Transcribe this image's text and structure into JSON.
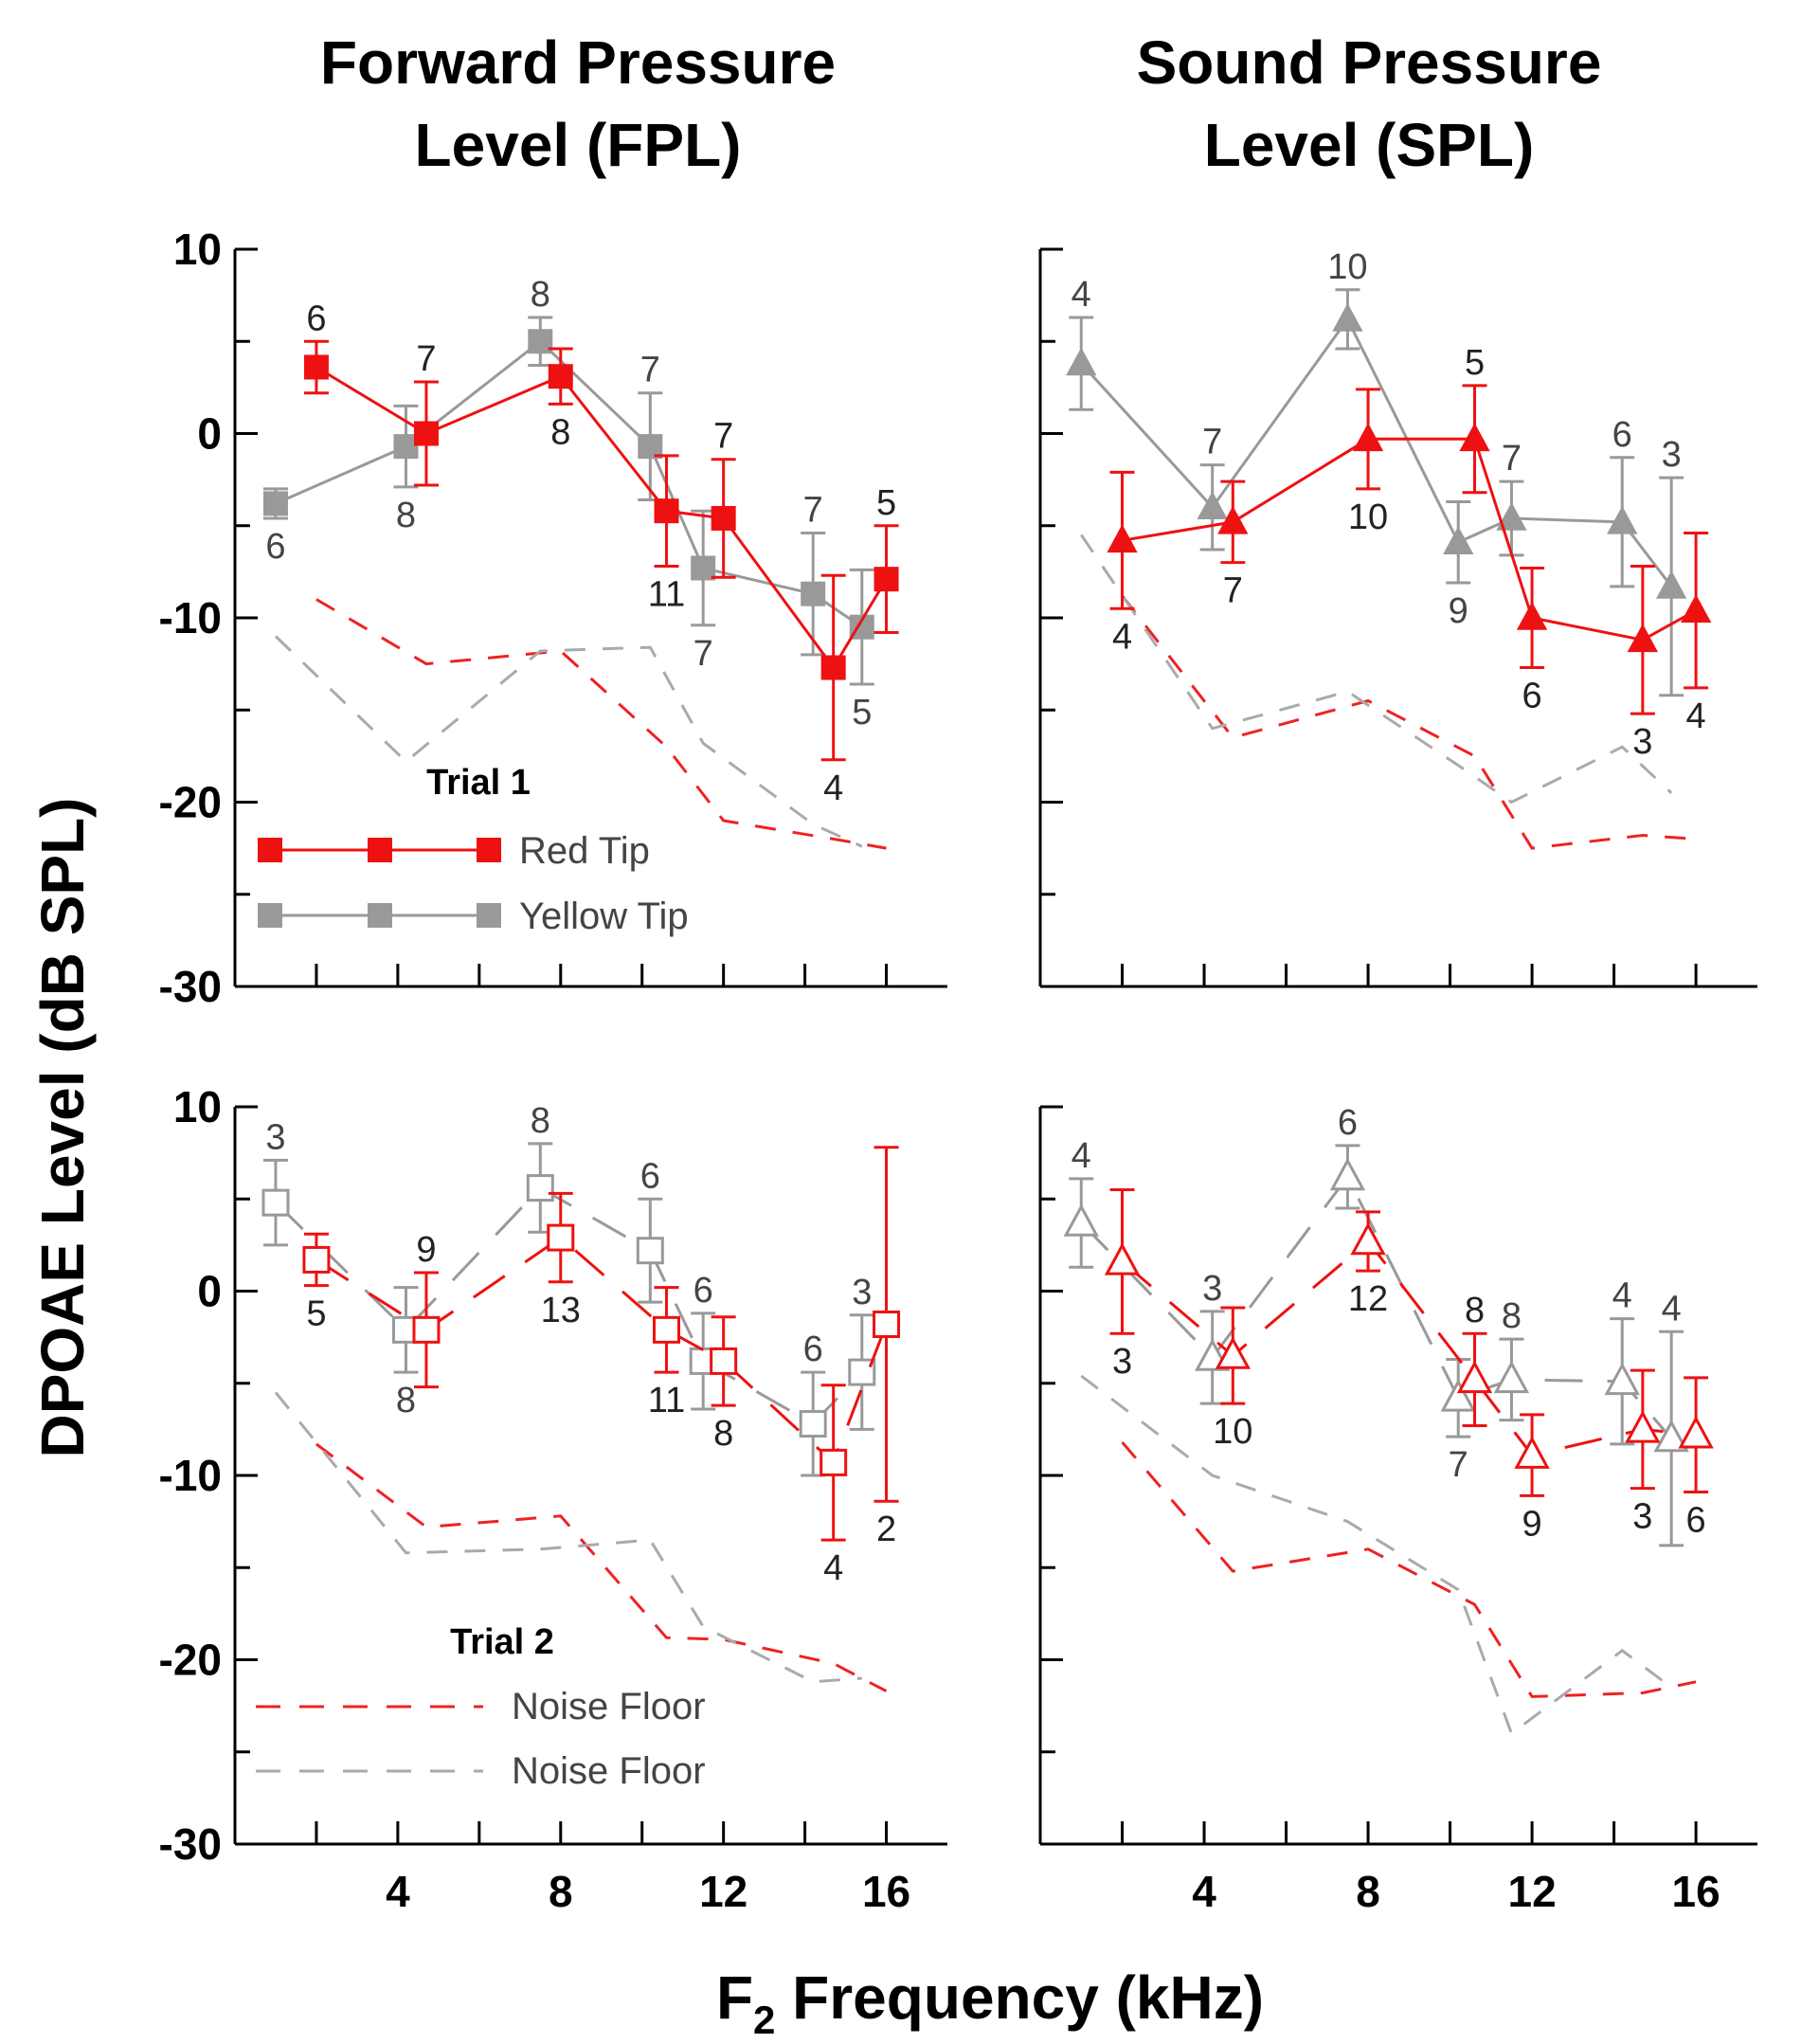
{
  "figure": {
    "col_titles": [
      [
        "Forward Pressure",
        "Level (FPL)"
      ],
      [
        "Sound Pressure",
        "Level (SPL)"
      ]
    ],
    "ylabel": "DPOAE Level (dB SPL)",
    "xlabel_prefix": "F",
    "xlabel_sub": "2",
    "xlabel_suffix": " Frequency (kHz)"
  },
  "colors": {
    "red": "#ee1111",
    "gray": "#999999",
    "red_noise": "#ee2222",
    "gray_noise": "#aaaaaa"
  },
  "legends": {
    "trial1": {
      "title": "Trial 1",
      "items": [
        {
          "label": "Red Tip",
          "series": "red"
        },
        {
          "label": "Yellow Tip",
          "series": "gray"
        }
      ]
    },
    "trial2": {
      "title": "Trial 2",
      "items": [
        {
          "label": "Noise Floor",
          "series": "red"
        },
        {
          "label": "Noise Floor",
          "series": "gray"
        }
      ]
    }
  },
  "chart_data": [
    {
      "id": "fpl_trial1",
      "type": "line",
      "marker": "square",
      "filled": true,
      "line_style": "solid",
      "xlim": [
        0,
        17.5
      ],
      "ylim": [
        -30,
        10
      ],
      "xticks": [
        4,
        8,
        12,
        16
      ],
      "yticks": [
        10,
        0,
        -10,
        -20,
        -30
      ],
      "series": [
        {
          "name": "Red Tip",
          "color": "red",
          "x": [
            2.0,
            4.7,
            8.0,
            10.6,
            12.0,
            14.7,
            16.0
          ],
          "y": [
            3.6,
            0.0,
            3.1,
            -4.2,
            -4.6,
            -12.7,
            -7.9
          ],
          "err": [
            1.4,
            2.8,
            1.5,
            3.0,
            3.2,
            5.0,
            2.9
          ],
          "n": [
            "6",
            "7",
            "8",
            "11",
            "7",
            "4",
            "5"
          ],
          "n_pos": [
            "above",
            "above",
            "below",
            "below",
            "above",
            "below",
            "above"
          ]
        },
        {
          "name": "Yellow Tip",
          "color": "gray",
          "x": [
            1.0,
            4.2,
            7.5,
            10.2,
            11.5,
            14.2,
            15.4
          ],
          "y": [
            -3.8,
            -0.7,
            5.0,
            -0.7,
            -7.3,
            -8.7,
            -10.5
          ],
          "err": [
            0.8,
            2.2,
            1.3,
            2.9,
            3.1,
            3.3,
            3.1
          ],
          "n": [
            "6",
            "8",
            "8",
            "7",
            "7",
            "7",
            "5"
          ],
          "n_pos": [
            "below",
            "below",
            "above",
            "above",
            "below",
            "above",
            "below"
          ]
        }
      ],
      "noise_floor": [
        {
          "color": "red",
          "x": [
            2.0,
            4.7,
            8.0,
            10.6,
            12.0,
            14.7,
            16.0
          ],
          "y": [
            -9.0,
            -12.5,
            -11.8,
            -17.0,
            -21.0,
            -22.0,
            -22.5
          ]
        },
        {
          "color": "gray",
          "x": [
            1.0,
            4.2,
            7.5,
            10.2,
            11.5,
            14.2,
            15.4
          ],
          "y": [
            -11.0,
            -17.8,
            -11.8,
            -11.6,
            -16.8,
            -21.2,
            -22.4
          ]
        }
      ]
    },
    {
      "id": "spl_trial1",
      "type": "line",
      "marker": "triangle",
      "filled": true,
      "line_style": "solid",
      "xlim": [
        0,
        17.5
      ],
      "ylim": [
        -30,
        10
      ],
      "xticks": [
        4,
        8,
        12,
        16
      ],
      "yticks": [
        10,
        0,
        -10,
        -20,
        -30
      ],
      "series": [
        {
          "name": "Red Tip",
          "color": "red",
          "x": [
            2.0,
            4.7,
            8.0,
            10.6,
            12.0,
            14.7,
            16.0
          ],
          "y": [
            -5.8,
            -4.8,
            -0.3,
            -0.3,
            -10.0,
            -11.2,
            -9.6
          ],
          "err": [
            3.7,
            2.2,
            2.7,
            2.9,
            2.7,
            4.0,
            4.2
          ],
          "n": [
            "4",
            "7",
            "10",
            "5",
            "6",
            "3",
            "4"
          ],
          "n_pos": [
            "below",
            "below",
            "below",
            "above",
            "below",
            "below",
            "below"
          ]
        },
        {
          "name": "Yellow Tip",
          "color": "gray",
          "x": [
            1.0,
            4.2,
            7.5,
            10.2,
            11.5,
            14.2,
            15.4
          ],
          "y": [
            3.8,
            -4.0,
            6.2,
            -5.9,
            -4.6,
            -4.8,
            -8.3
          ],
          "err": [
            2.5,
            2.3,
            1.6,
            2.2,
            2.0,
            3.5,
            5.9
          ],
          "n": [
            "4",
            "7",
            "10",
            "9",
            "7",
            "6",
            "3"
          ],
          "n_pos": [
            "above",
            "above",
            "above",
            "below",
            "above",
            "above",
            "above"
          ]
        }
      ],
      "noise_floor": [
        {
          "color": "red",
          "x": [
            2.0,
            4.7,
            8.0,
            10.6,
            12.0,
            14.7,
            16.0
          ],
          "y": [
            -8.8,
            -16.5,
            -14.5,
            -17.5,
            -22.5,
            -21.8,
            -22.0
          ]
        },
        {
          "color": "gray",
          "x": [
            1.0,
            4.2,
            7.5,
            10.2,
            11.5,
            14.2,
            15.4
          ],
          "y": [
            -5.5,
            -16.0,
            -14.0,
            -18.0,
            -20.0,
            -17.0,
            -19.5
          ]
        }
      ]
    },
    {
      "id": "fpl_trial2",
      "type": "line",
      "marker": "square",
      "filled": false,
      "line_style": "dashed",
      "xlim": [
        0,
        17.5
      ],
      "ylim": [
        -30,
        10
      ],
      "xticks": [
        4,
        8,
        12,
        16
      ],
      "yticks": [
        10,
        0,
        -10,
        -20,
        -30
      ],
      "series": [
        {
          "name": "Red Tip",
          "color": "red",
          "x": [
            2.0,
            4.7,
            8.0,
            10.6,
            12.0,
            14.7,
            16.0
          ],
          "y": [
            1.7,
            -2.1,
            2.9,
            -2.1,
            -3.8,
            -9.3,
            -1.8
          ],
          "err": [
            1.4,
            3.1,
            2.4,
            2.3,
            2.4,
            4.2,
            9.6
          ],
          "n": [
            "5",
            "9",
            "13",
            "11",
            "8",
            "4",
            "2"
          ],
          "n_pos": [
            "below",
            "above",
            "below",
            "below",
            "below",
            "below",
            "below"
          ]
        },
        {
          "name": "Yellow Tip",
          "color": "gray",
          "x": [
            1.0,
            4.2,
            7.5,
            10.2,
            11.5,
            14.2,
            15.4
          ],
          "y": [
            4.8,
            -2.1,
            5.6,
            2.2,
            -3.8,
            -7.2,
            -4.4
          ],
          "err": [
            2.3,
            2.3,
            2.4,
            2.8,
            2.6,
            2.8,
            3.1
          ],
          "n": [
            "3",
            "8",
            "8",
            "6",
            "6",
            "6",
            "3"
          ],
          "n_pos": [
            "above",
            "below",
            "above",
            "above",
            "above",
            "above",
            "above"
          ]
        }
      ],
      "noise_floor": [
        {
          "color": "red",
          "x": [
            2.0,
            4.7,
            8.0,
            10.6,
            12.0,
            14.7,
            16.0
          ],
          "y": [
            -8.3,
            -12.8,
            -12.2,
            -18.8,
            -18.9,
            -20.2,
            -21.7
          ]
        },
        {
          "color": "gray",
          "x": [
            1.0,
            4.2,
            7.5,
            10.2,
            11.5,
            14.2,
            15.4
          ],
          "y": [
            -5.5,
            -14.2,
            -14.0,
            -13.5,
            -18.2,
            -21.2,
            -21.0
          ]
        }
      ]
    },
    {
      "id": "spl_trial2",
      "type": "line",
      "marker": "triangle",
      "filled": false,
      "line_style": "dashed",
      "xlim": [
        0,
        17.5
      ],
      "ylim": [
        -30,
        10
      ],
      "xticks": [
        4,
        8,
        12,
        16
      ],
      "yticks": [
        10,
        0,
        -10,
        -20,
        -30
      ],
      "series": [
        {
          "name": "Red Tip",
          "color": "red",
          "x": [
            2.0,
            4.7,
            8.0,
            10.6,
            12.0,
            14.7,
            16.0
          ],
          "y": [
            1.6,
            -3.5,
            2.7,
            -4.8,
            -8.9,
            -7.5,
            -7.8
          ],
          "err": [
            3.9,
            2.6,
            1.6,
            2.5,
            2.2,
            3.2,
            3.1
          ],
          "n": [
            "3",
            "10",
            "12",
            "8",
            "9",
            "3",
            "6"
          ],
          "n_pos": [
            "below",
            "below",
            "below",
            "above",
            "below",
            "below",
            "below"
          ]
        },
        {
          "name": "Yellow Tip",
          "color": "gray",
          "x": [
            1.0,
            4.2,
            7.5,
            10.2,
            11.5,
            14.2,
            15.4
          ],
          "y": [
            3.7,
            -3.6,
            6.2,
            -5.8,
            -4.8,
            -4.9,
            -8.0
          ],
          "err": [
            2.4,
            2.5,
            1.7,
            2.1,
            2.2,
            3.4,
            5.8
          ],
          "n": [
            "4",
            "3",
            "6",
            "7",
            "8",
            "4",
            "4"
          ],
          "n_pos": [
            "above",
            "above",
            "above",
            "below",
            "above",
            "above",
            "above"
          ]
        }
      ],
      "noise_floor": [
        {
          "color": "red",
          "x": [
            2.0,
            4.7,
            8.0,
            10.6,
            12.0,
            14.7,
            16.0
          ],
          "y": [
            -8.2,
            -15.2,
            -14.0,
            -17.0,
            -22.0,
            -21.8,
            -21.2
          ]
        },
        {
          "color": "gray",
          "x": [
            1.0,
            4.2,
            7.5,
            10.2,
            11.5,
            14.2,
            15.4
          ],
          "y": [
            -4.6,
            -10.0,
            -12.5,
            -16.2,
            -24.0,
            -19.5,
            -21.5
          ]
        }
      ]
    }
  ]
}
